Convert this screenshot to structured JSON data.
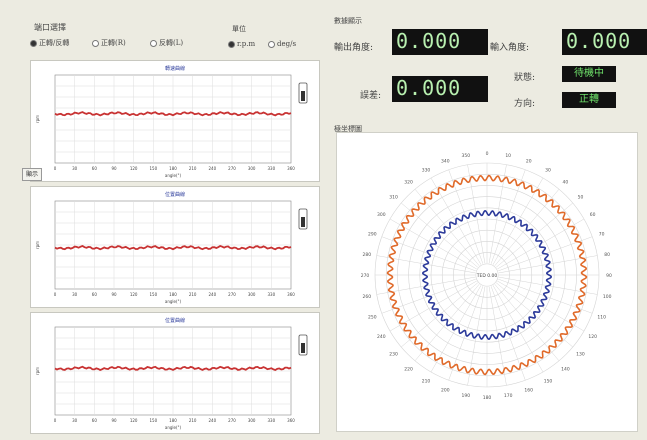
{
  "port_select": {
    "title": "端口選擇",
    "options": [
      "正轉/反轉",
      "正轉(R)",
      "反轉(L)"
    ],
    "selected": 0
  },
  "unit": {
    "title": "單位",
    "options": [
      "r.p.m",
      "deg/s"
    ],
    "selected": 0
  },
  "charts": [
    {
      "title": "轉速曲線",
      "ylabel": "rpm",
      "xlabel": "angle(°)",
      "color": "#c83232",
      "level": 0.56
    },
    {
      "title": "位置曲線",
      "ylabel": "rpm",
      "xlabel": "angle(°)",
      "color": "#c83232",
      "level": 0.47
    },
    {
      "title": "位置曲線",
      "ylabel": "rpm",
      "xlabel": "angle(°)",
      "color": "#c83232",
      "level": 0.53
    }
  ],
  "x_ticks": [
    "0",
    "30",
    "60",
    "90",
    "120",
    "150",
    "180",
    "210",
    "240",
    "270",
    "300",
    "330",
    "360"
  ],
  "side_button": "顯示",
  "readout": {
    "title": "數據顯示",
    "angle1_label": "輸出角度:",
    "angle1_value": "0.000",
    "angle2_label": "輸入角度:",
    "angle2_value": "0.000",
    "error_label": "誤差:",
    "error_value": "0.000",
    "status_label": "狀態:",
    "status_value": "待機中",
    "direction_label": "方向:",
    "direction_value": "正轉"
  },
  "polar": {
    "title": "極坐標圖",
    "center_label": "TED 0.00",
    "outer_color": "#e06a2a",
    "inner_color": "#2c3a9a",
    "angle_ticks": [
      "0",
      "10",
      "20",
      "30",
      "40",
      "50",
      "60",
      "70",
      "80",
      "90",
      "100",
      "110",
      "120",
      "130",
      "140",
      "150",
      "160",
      "170",
      "180",
      "190",
      "200",
      "210",
      "220",
      "230",
      "240",
      "250",
      "260",
      "270",
      "280",
      "290",
      "300",
      "310",
      "320",
      "330",
      "340",
      "350"
    ]
  }
}
